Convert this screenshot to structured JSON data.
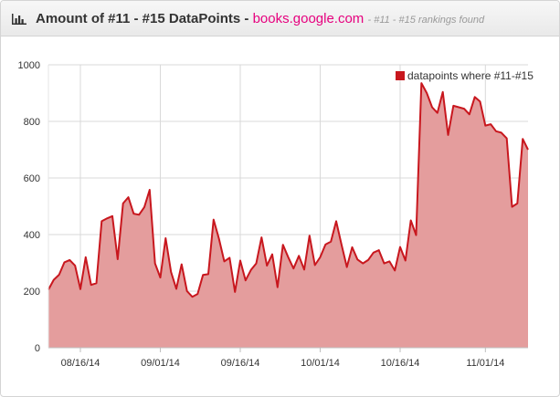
{
  "header": {
    "icon": "bar-chart-icon",
    "title": "Amount of #11 - #15 DataPoints -",
    "domain": "books.google.com",
    "subtitle": "- #11 - #15 rankings found"
  },
  "colors": {
    "line": "#c8171e",
    "fill": "#e49d9d",
    "grid": "#d9d9d9",
    "domain": "#e6007e"
  },
  "chart_data": {
    "type": "area",
    "series": [
      {
        "name": "datapoints where #11-#15",
        "values": [
          205,
          240,
          258,
          302,
          310,
          290,
          207,
          320,
          222,
          228,
          447,
          457,
          465,
          313,
          510,
          532,
          474,
          470,
          497,
          558,
          298,
          248,
          387,
          268,
          208,
          295,
          200,
          180,
          190,
          257,
          260,
          453,
          385,
          305,
          318,
          197,
          308,
          238,
          275,
          298,
          390,
          290,
          330,
          214,
          364,
          320,
          280,
          325,
          276,
          396,
          292,
          320,
          365,
          375,
          447,
          365,
          285,
          355,
          312,
          298,
          310,
          336,
          345,
          298,
          305,
          273,
          356,
          308,
          450,
          398,
          935,
          900,
          850,
          830,
          904,
          752,
          855,
          850,
          845,
          825,
          886,
          870,
          785,
          790,
          765,
          760,
          740,
          498,
          510,
          738,
          700
        ]
      }
    ],
    "x_tick_labels": [
      "08/16/14",
      "09/01/14",
      "09/16/14",
      "10/01/14",
      "10/16/14",
      "11/01/14"
    ],
    "x_tick_indices": [
      6,
      21,
      36,
      51,
      66,
      82
    ],
    "x_major_gridline_indices": [
      6,
      21,
      36,
      51,
      66,
      82
    ],
    "y_ticks": [
      0,
      200,
      400,
      600,
      800,
      1000
    ],
    "ylim": [
      0,
      1000
    ],
    "legend_position": "top-right",
    "grid": true
  }
}
